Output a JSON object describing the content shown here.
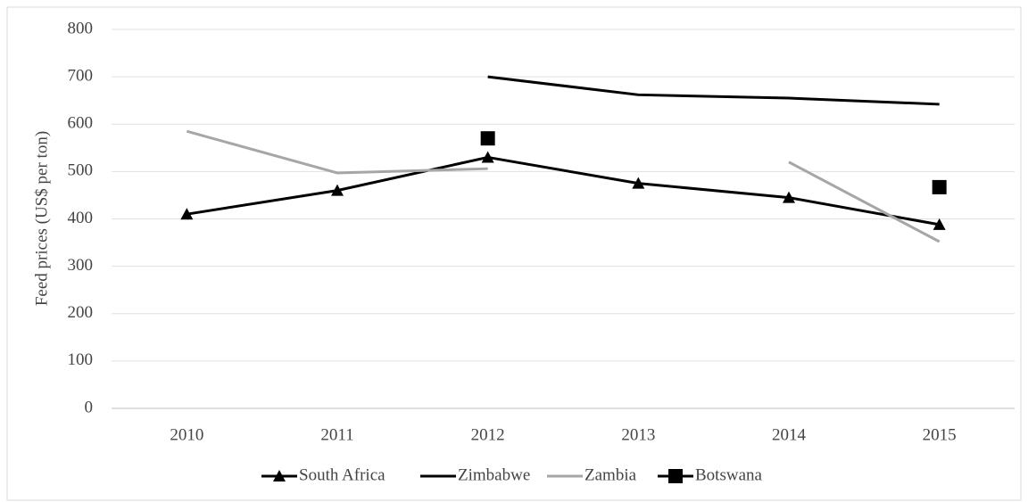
{
  "chart_data": {
    "type": "line",
    "y_label": "Feed prices (US$ per ton)",
    "categories": [
      "2010",
      "2011",
      "2012",
      "2013",
      "2014",
      "2015"
    ],
    "series": [
      {
        "name": "South Africa",
        "color": "#000000",
        "marker": "triangle",
        "line": true,
        "values": [
          410,
          460,
          530,
          475,
          445,
          388
        ]
      },
      {
        "name": "Zimbabwe",
        "color": "#000000",
        "marker": "none",
        "line": true,
        "values": [
          null,
          null,
          700,
          662,
          655,
          642
        ]
      },
      {
        "name": "Zambia",
        "color": "#a6a6a6",
        "marker": "none",
        "line": true,
        "values": [
          585,
          497,
          506,
          null,
          520,
          352
        ]
      },
      {
        "name": "Botswana",
        "color": "#000000",
        "marker": "square",
        "line": false,
        "values": [
          null,
          null,
          570,
          null,
          null,
          467
        ]
      }
    ],
    "ylim": [
      0,
      800
    ],
    "yticks": [
      0,
      100,
      200,
      300,
      400,
      500,
      600,
      700,
      800
    ],
    "grid": true,
    "legend": "bottom"
  }
}
